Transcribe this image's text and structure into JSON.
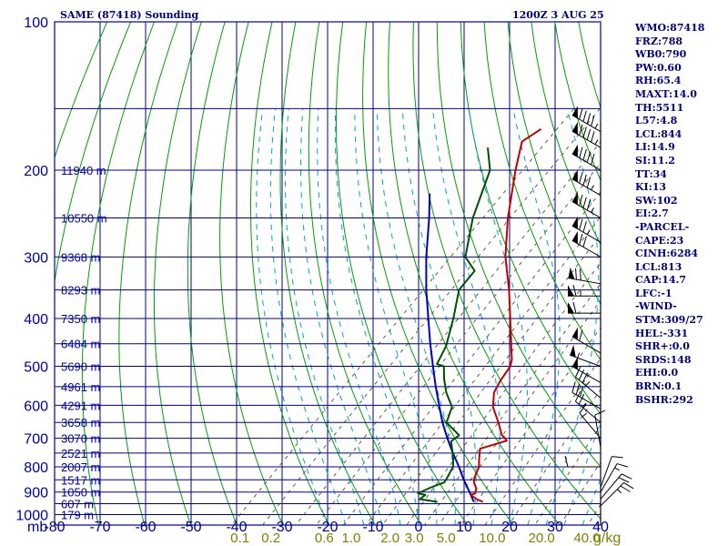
{
  "header": {
    "title": "SAME (87418) Sounding",
    "datetime": "1200Z  3 AUG 25"
  },
  "stats": [
    "WMO:87418",
    "FRZ:788",
    "WB0:790",
    "PW:0.60",
    "RH:65.4",
    "MAXT:14.0",
    "TH:5511",
    "L57:4.8",
    "LCL:844",
    "LI:14.9",
    "SI:11.2",
    "TT:34",
    "KI:13",
    "SW:102",
    "EI:2.7",
    "-PARCEL-",
    "CAPE:23",
    "CINH:6284",
    "LCL:813",
    "CAP:14.7",
    "LFC:-1",
    "-WIND-",
    "STM:309/27",
    "HEL:-331",
    "SHR+:0.0",
    "SRDS:148",
    "EHI:0.0",
    "BRN:0.1",
    "BSHR:292"
  ],
  "colors": {
    "background": "#ffffff",
    "frame": "#0000a0",
    "isobar": "#000090",
    "isotherm": "#000090",
    "dry_adiabat": "#00a000",
    "moist_adiabat": "#00a0e0",
    "mixing_ratio": "#606030",
    "temperature": "#c00000",
    "dewpoint": "#005000",
    "parcel": "#0000c0",
    "label_blue": "#0000a0",
    "label_olive": "#808000",
    "wind": "#000000"
  },
  "chart_data": {
    "type": "line",
    "subtype": "skew-T log-p sounding",
    "xlabel": "",
    "ylabel": "",
    "corner_label": "mb",
    "x_unit_label": "g/kg",
    "pressure_ticks": [
      "100",
      "200",
      "300",
      "400",
      "500",
      "600",
      "700",
      "800",
      "900",
      "1000"
    ],
    "temperature_ticks": [
      "-80",
      "-70",
      "-60",
      "-50",
      "-40",
      "-30",
      "-20",
      "-10",
      "0",
      "10",
      "20",
      "30",
      "40"
    ],
    "mixing_ratio_ticks": [
      "0.1",
      "0.2",
      "0.6",
      "1.0",
      "2.0",
      "3.0",
      "5.0",
      "10.0",
      "20.0",
      "40.0"
    ],
    "height_labels": [
      {
        "p": 200,
        "text": "11940 m"
      },
      {
        "p": 250,
        "text": "10550 m"
      },
      {
        "p": 300,
        "text": "9368 m"
      },
      {
        "p": 350,
        "text": "8293 m"
      },
      {
        "p": 400,
        "text": "7350 m"
      },
      {
        "p": 450,
        "text": "6484 m"
      },
      {
        "p": 500,
        "text": "5690 m"
      },
      {
        "p": 550,
        "text": "4961 m"
      },
      {
        "p": 600,
        "text": "4291 m"
      },
      {
        "p": 650,
        "text": "3658 m"
      },
      {
        "p": 700,
        "text": "3070 m"
      },
      {
        "p": 750,
        "text": "2521 m"
      },
      {
        "p": 800,
        "text": "2007 m"
      },
      {
        "p": 850,
        "text": "1517 m"
      },
      {
        "p": 900,
        "text": "1050 m"
      },
      {
        "p": 950,
        "text": "607 m"
      },
      {
        "p": 1000,
        "text": "179 m"
      }
    ],
    "axes": {
      "pressure_range": [
        100,
        1050
      ],
      "temperature_range_at_1050": [
        -80,
        40
      ],
      "pressure_scale": "log"
    },
    "series": [
      {
        "key": "temperature",
        "points": [
          [
            942,
            9.0
          ],
          [
            930,
            7.0
          ],
          [
            912,
            4.8
          ],
          [
            905,
            5.4
          ],
          [
            885,
            4.6
          ],
          [
            860,
            2.7
          ],
          [
            842,
            1.8
          ],
          [
            800,
            0.4
          ],
          [
            770,
            -1.4
          ],
          [
            735,
            -3.4
          ],
          [
            708,
            0.7
          ],
          [
            697,
            -0.6
          ],
          [
            690,
            -1.6
          ],
          [
            650,
            -5.2
          ],
          [
            605,
            -9.8
          ],
          [
            565,
            -12.8
          ],
          [
            535,
            -14.0
          ],
          [
            500,
            -15.0
          ],
          [
            484,
            -16.2
          ],
          [
            455,
            -19.3
          ],
          [
            450,
            -19.8
          ],
          [
            400,
            -25.6
          ],
          [
            350,
            -32.2
          ],
          [
            300,
            -40.3
          ],
          [
            250,
            -48.4
          ],
          [
            200,
            -57.3
          ],
          [
            175,
            -62.2
          ],
          [
            165,
            -60.8
          ]
        ]
      },
      {
        "key": "dewpoint",
        "points": [
          [
            942,
            -1.0
          ],
          [
            930,
            -5.5
          ],
          [
            912,
            -5.2
          ],
          [
            905,
            -7.2
          ],
          [
            880,
            -5.6
          ],
          [
            860,
            -3.8
          ],
          [
            842,
            -4.2
          ],
          [
            800,
            -5.3
          ],
          [
            765,
            -7.4
          ],
          [
            710,
            -11.4
          ],
          [
            690,
            -11.0
          ],
          [
            650,
            -16.6
          ],
          [
            605,
            -18.8
          ],
          [
            585,
            -21.0
          ],
          [
            565,
            -23.3
          ],
          [
            530,
            -26.8
          ],
          [
            500,
            -29.6
          ],
          [
            495,
            -31.6
          ],
          [
            455,
            -33.6
          ],
          [
            400,
            -38.1
          ],
          [
            350,
            -43.2
          ],
          [
            320,
            -44.0
          ],
          [
            300,
            -49.1
          ],
          [
            250,
            -56.1
          ],
          [
            200,
            -62.9
          ],
          [
            180,
            -68.4
          ]
        ]
      },
      {
        "key": "parcel",
        "points": [
          [
            942,
            7.0
          ],
          [
            900,
            3.9
          ],
          [
            850,
            -0.1
          ],
          [
            800,
            -4.0
          ],
          [
            750,
            -8.4
          ],
          [
            700,
            -12.9
          ],
          [
            650,
            -17.5
          ],
          [
            600,
            -22.0
          ],
          [
            550,
            -26.9
          ],
          [
            500,
            -32.0
          ],
          [
            450,
            -37.6
          ],
          [
            400,
            -43.6
          ],
          [
            350,
            -50.4
          ],
          [
            300,
            -57.7
          ],
          [
            250,
            -65.7
          ],
          [
            223,
            -71.0
          ]
        ]
      }
    ],
    "wind_barbs": [
      {
        "p": 167,
        "dir": 300,
        "speed": 95
      },
      {
        "p": 180,
        "dir": 300,
        "speed": 95
      },
      {
        "p": 200,
        "dir": 300,
        "speed": 90
      },
      {
        "p": 225,
        "dir": 300,
        "speed": 85
      },
      {
        "p": 250,
        "dir": 300,
        "speed": 85
      },
      {
        "p": 280,
        "dir": 300,
        "speed": 75
      },
      {
        "p": 300,
        "dir": 300,
        "speed": 70
      },
      {
        "p": 340,
        "dir": 280,
        "speed": 70
      },
      {
        "p": 360,
        "dir": 270,
        "speed": 65
      },
      {
        "p": 390,
        "dir": 270,
        "speed": 60
      },
      {
        "p": 470,
        "dir": 300,
        "speed": 60
      },
      {
        "p": 500,
        "dir": 290,
        "speed": 55
      },
      {
        "p": 540,
        "dir": 300,
        "speed": 50
      },
      {
        "p": 580,
        "dir": 310,
        "speed": 35
      },
      {
        "p": 610,
        "dir": 300,
        "speed": 30
      },
      {
        "p": 650,
        "dir": 310,
        "speed": 25
      },
      {
        "p": 700,
        "dir": 320,
        "speed": 15
      },
      {
        "p": 730,
        "dir": 350,
        "speed": 10
      },
      {
        "p": 800,
        "dir": 270,
        "speed": 10
      },
      {
        "p": 880,
        "dir": 20,
        "speed": 10
      },
      {
        "p": 900,
        "dir": 30,
        "speed": 15
      },
      {
        "p": 930,
        "dir": 40,
        "speed": 20
      },
      {
        "p": 960,
        "dir": 45,
        "speed": 25
      }
    ]
  }
}
